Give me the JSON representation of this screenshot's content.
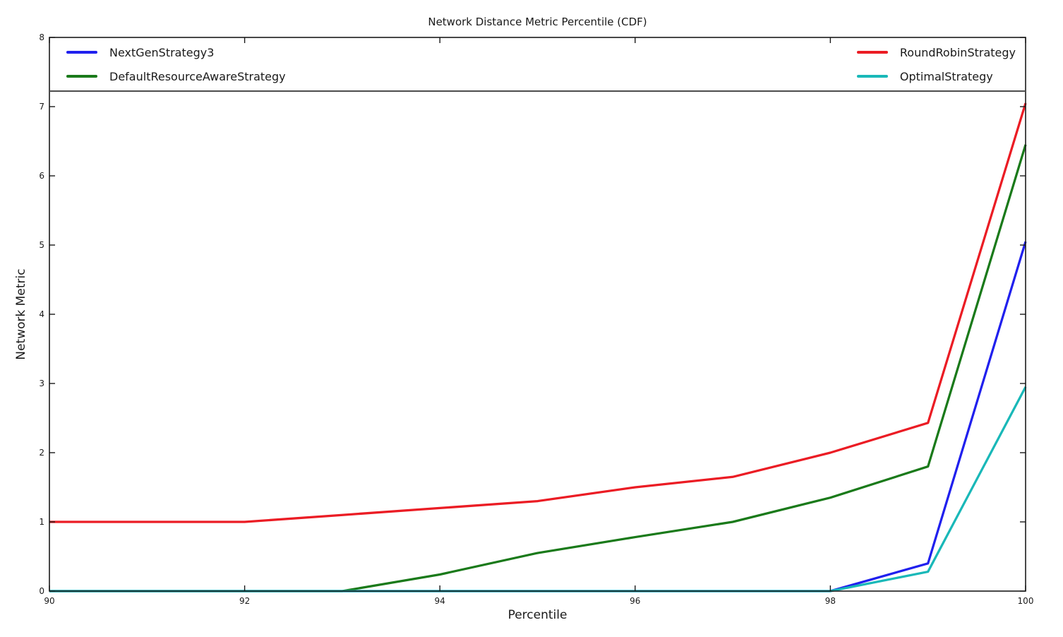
{
  "chart_data": {
    "type": "line",
    "title": "Network Distance Metric Percentile (CDF)",
    "xlabel": "Percentile",
    "ylabel": "Network Metric",
    "xlim": [
      90,
      100
    ],
    "ylim": [
      0,
      8
    ],
    "xticks": [
      90,
      92,
      94,
      96,
      98,
      100
    ],
    "yticks": [
      0,
      1,
      2,
      3,
      4,
      5,
      6,
      7,
      8
    ],
    "grid": false,
    "legend_position": "top full-width box inside plot, two columns (left and right)",
    "x": [
      90,
      91,
      92,
      93,
      94,
      95,
      96,
      97,
      98,
      99,
      100
    ],
    "series": [
      {
        "name": "NextGenStrategy3",
        "color": "#2020ee",
        "values": [
          0,
          0,
          0,
          0,
          0,
          0,
          0,
          0,
          0,
          0.4,
          5.05
        ]
      },
      {
        "name": "DefaultResourceAwareStrategy",
        "color": "#1a7a1a",
        "values": [
          0,
          0,
          0,
          0,
          0.24,
          0.55,
          0.78,
          1.0,
          1.35,
          1.8,
          6.45
        ]
      },
      {
        "name": "RoundRobinStrategy",
        "color": "#eb1c24",
        "values": [
          1.0,
          1.0,
          1.0,
          1.1,
          1.2,
          1.3,
          1.5,
          1.65,
          2.0,
          2.43,
          7.05
        ]
      },
      {
        "name": "OptimalStrategy",
        "color": "#19b8b8",
        "values": [
          0,
          0,
          0,
          0,
          0,
          0,
          0,
          0,
          0,
          0.28,
          2.95
        ]
      }
    ],
    "draw_order": [
      0,
      1,
      2,
      3
    ],
    "line_width": 3.25,
    "axis_color": "#1a1a1a",
    "background_color": "#ffffff"
  }
}
